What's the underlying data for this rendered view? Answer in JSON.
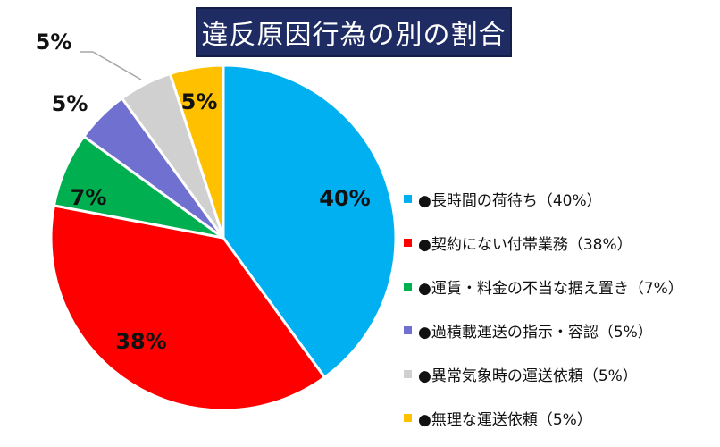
{
  "chart_data": {
    "type": "pie",
    "title": "違反原因行為の別の割合",
    "categories": [
      "●長時間の荷待ち（40%）",
      "●契約にない付帯業務（38%）",
      "●運賃・料金の不当な据え置き（7%）",
      "●過積載運送の指示・容認（5%）",
      "●異常気象時の運送依頼（5%）",
      "●無理な運送依頼（5%）"
    ],
    "values": [
      40,
      38,
      7,
      5,
      5,
      5
    ],
    "value_labels": [
      "40%",
      "38%",
      "7%",
      "5%",
      "5%",
      "5%"
    ],
    "colors": [
      "#00b0f0",
      "#ff0000",
      "#00b050",
      "#7070d0",
      "#d0d0d0",
      "#ffc000"
    ],
    "legend_position": "right"
  }
}
